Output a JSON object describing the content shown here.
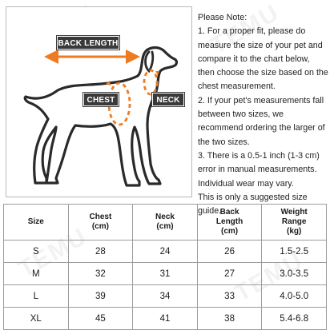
{
  "diagram": {
    "back_length_label": "BACK LENGTH",
    "chest_label": "CHEST",
    "neck_label": "NECK",
    "arrow_color": "#ee7b22",
    "silhouette_color": "#2a2a2a"
  },
  "note": {
    "title": "Please Note:",
    "items": [
      "1. For a proper fit, please do measure the size of your pet and compare it to the chart below, then choose the size based on the chest measurement.",
      "2. If your pet's measurements fall between two sizes, we recommend ordering the larger of the two sizes.",
      "3. There is a 0.5-1 inch (1-3 cm) error in manual measurements. Individual wear may vary.",
      "This is only a suggested size guide."
    ]
  },
  "table": {
    "headers": [
      [
        "Size"
      ],
      [
        "Chest",
        "(cm)"
      ],
      [
        "Neck",
        "(cm)"
      ],
      [
        "Back",
        "Length",
        "(cm)"
      ],
      [
        "Weight",
        "Range",
        "(kg)"
      ]
    ],
    "rows": [
      [
        "S",
        "28",
        "24",
        "26",
        "1.5-2.5"
      ],
      [
        "M",
        "32",
        "31",
        "27",
        "3.0-3.5"
      ],
      [
        "L",
        "39",
        "34",
        "33",
        "4.0-5.0"
      ],
      [
        "XL",
        "45",
        "41",
        "38",
        "5.4-6.8"
      ]
    ]
  },
  "watermark": "TEMU"
}
